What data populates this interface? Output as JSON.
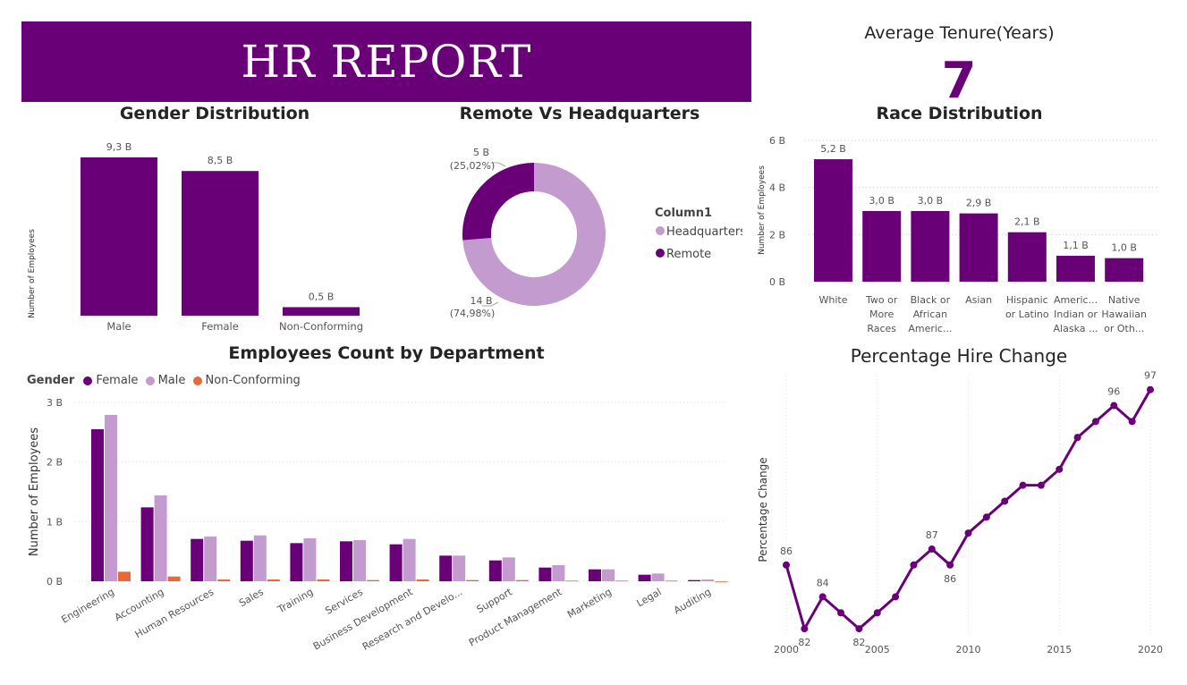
{
  "banner": {
    "title": "HR REPORT"
  },
  "kpi": {
    "title": "Average Tenure(Years)",
    "value": "7"
  },
  "colors": {
    "female": "#6a0077",
    "male": "#c39bcf",
    "nonconforming": "#e8683a",
    "primary": "#6a0077",
    "light": "#c39bcf"
  },
  "chart_data": [
    {
      "id": "gender",
      "type": "bar",
      "title": "Gender Distribution",
      "ylabel": "Number of Employees",
      "categories": [
        "Male",
        "Female",
        "Non-Conforming"
      ],
      "values": [
        9.3,
        8.5,
        0.5
      ],
      "data_labels": [
        "9,3 B",
        "8,5 B",
        "0,5 B"
      ],
      "ylim": [
        0,
        9.3
      ]
    },
    {
      "id": "remote",
      "type": "pie",
      "title": "Remote Vs Headquarters",
      "legend_title": "Column1",
      "labels": [
        "Headquarters",
        "Remote"
      ],
      "values": [
        14,
        5
      ],
      "percent": [
        74.98,
        25.02
      ],
      "value_labels": [
        "14 B",
        "5 B"
      ],
      "percent_labels": [
        "(74,98%)",
        "(25,02%)"
      ],
      "legend": "right"
    },
    {
      "id": "race",
      "type": "bar",
      "title": "Race Distribution",
      "ylabel": "Number of Employees",
      "categories": [
        [
          "White"
        ],
        [
          "Two or",
          "More",
          "Races"
        ],
        [
          "Black or",
          "African",
          "Americ..."
        ],
        [
          "Asian"
        ],
        [
          "Hispanic",
          "or Latino"
        ],
        [
          "Americ...",
          "Indian or",
          "Alaska ..."
        ],
        [
          "Native",
          "Hawaiian",
          "or Oth..."
        ]
      ],
      "values": [
        5.2,
        3.0,
        3.0,
        2.9,
        2.1,
        1.1,
        1.0
      ],
      "data_labels": [
        "5,2 B",
        "3,0 B",
        "3,0 B",
        "2,9 B",
        "2,1 B",
        "1,1 B",
        "1,0 B"
      ],
      "yticks": [
        0,
        2,
        4,
        6
      ],
      "ytick_labels": [
        "0 B",
        "2 B",
        "4 B",
        "6 B"
      ],
      "ylim": [
        0,
        6
      ],
      "grid": true
    },
    {
      "id": "department",
      "type": "bar",
      "title": "Employees Count by Department",
      "ylabel": "Number of Employees",
      "legend_title": "Gender",
      "categories": [
        "Engineering",
        "Accounting",
        "Human Resources",
        "Sales",
        "Training",
        "Services",
        "Business Development",
        "Research and Develo...",
        "Support",
        "Product Management",
        "Marketing",
        "Legal",
        "Auditing"
      ],
      "series": [
        {
          "name": "Female",
          "values": [
            2.55,
            1.24,
            0.71,
            0.68,
            0.64,
            0.67,
            0.62,
            0.43,
            0.35,
            0.23,
            0.2,
            0.11,
            0.02
          ]
        },
        {
          "name": "Male",
          "values": [
            2.79,
            1.44,
            0.75,
            0.77,
            0.72,
            0.69,
            0.71,
            0.43,
            0.4,
            0.27,
            0.2,
            0.13,
            0.03
          ]
        },
        {
          "name": "Non-Conforming",
          "values": [
            0.16,
            0.08,
            0.03,
            0.03,
            0.03,
            0.02,
            0.03,
            0.02,
            0.02,
            0.01,
            0.01,
            0.01,
            0.0
          ]
        }
      ],
      "yticks": [
        0,
        1,
        2,
        3
      ],
      "ytick_labels": [
        "0 B",
        "1 B",
        "2 B",
        "3 B"
      ],
      "ylim": [
        0,
        3
      ],
      "legend": "top-left",
      "grid": true
    },
    {
      "id": "hire",
      "type": "line",
      "title": "Percentage Hire Change",
      "ylabel": "Percentage Change",
      "x": [
        2000,
        2001,
        2002,
        2003,
        2004,
        2005,
        2006,
        2007,
        2008,
        2009,
        2010,
        2011,
        2012,
        2013,
        2014,
        2015,
        2016,
        2017,
        2018,
        2019,
        2020
      ],
      "y": [
        86,
        82,
        84,
        83,
        82,
        83,
        84,
        86,
        87,
        86,
        88,
        89,
        90,
        91,
        91,
        92,
        94,
        95,
        96,
        95,
        97
      ],
      "point_labels": {
        "0": "86",
        "1": "82",
        "2": "84",
        "4": "82",
        "8": "87",
        "9": "86",
        "18": "96",
        "20": "97"
      },
      "xticks": [
        2000,
        2005,
        2010,
        2015,
        2020
      ],
      "ylim": [
        81.5,
        97.6
      ],
      "grid": true
    }
  ]
}
